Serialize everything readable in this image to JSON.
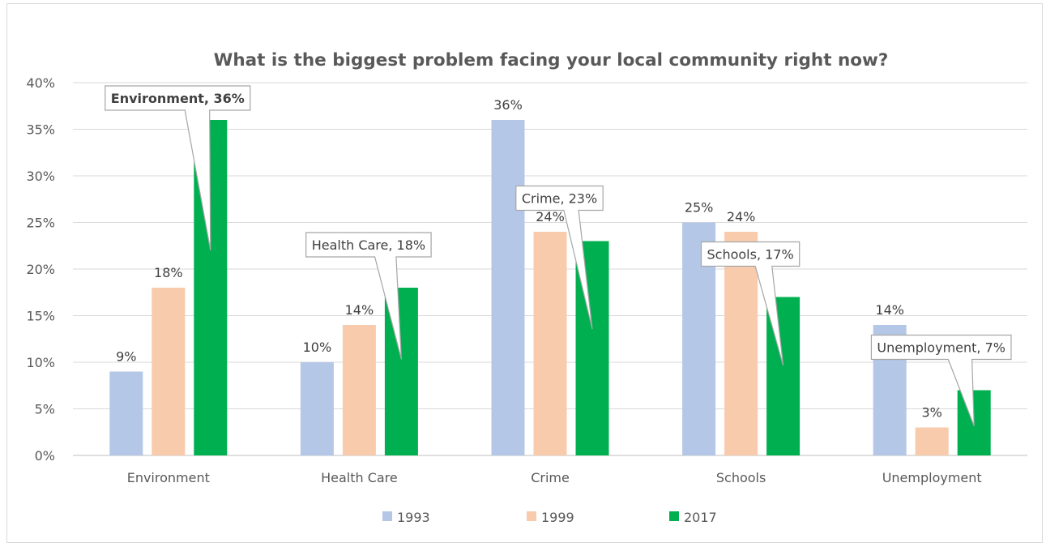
{
  "chart_data": {
    "type": "bar",
    "title": "What is the biggest problem facing your local community right now?",
    "categories": [
      "Environment",
      "Health Care",
      "Crime",
      "Schools",
      "Unemployment"
    ],
    "series": [
      {
        "name": "1993",
        "color": "#b4c7e7",
        "values": [
          9,
          10,
          36,
          25,
          14
        ]
      },
      {
        "name": "1999",
        "color": "#f8cbad",
        "values": [
          18,
          14,
          24,
          24,
          3
        ]
      },
      {
        "name": "2017",
        "color": "#00b050",
        "values": [
          36,
          18,
          23,
          17,
          7
        ]
      }
    ],
    "data_labels": {
      "1993": [
        "9%",
        "10%",
        "36%",
        "25%",
        "14%"
      ],
      "1999": [
        "18%",
        "14%",
        "24%",
        "24%",
        "3%"
      ]
    },
    "callouts": [
      {
        "category": "Environment",
        "series": "2017",
        "text": "Environment, 36%",
        "color": "#ff0000",
        "bold": true
      },
      {
        "category": "Health Care",
        "series": "2017",
        "text": "Health Care, 18%"
      },
      {
        "category": "Crime",
        "series": "2017",
        "text": "Crime, 23%"
      },
      {
        "category": "Schools",
        "series": "2017",
        "text": "Schools, 17%"
      },
      {
        "category": "Unemployment",
        "series": "2017",
        "text": "Unemployment, 7%"
      }
    ],
    "y_ticks": [
      "0%",
      "5%",
      "10%",
      "15%",
      "20%",
      "25%",
      "30%",
      "35%",
      "40%"
    ],
    "ylim": [
      0,
      40
    ],
    "xlabel": "",
    "ylabel": "",
    "grid": true,
    "legend": "bottom"
  }
}
